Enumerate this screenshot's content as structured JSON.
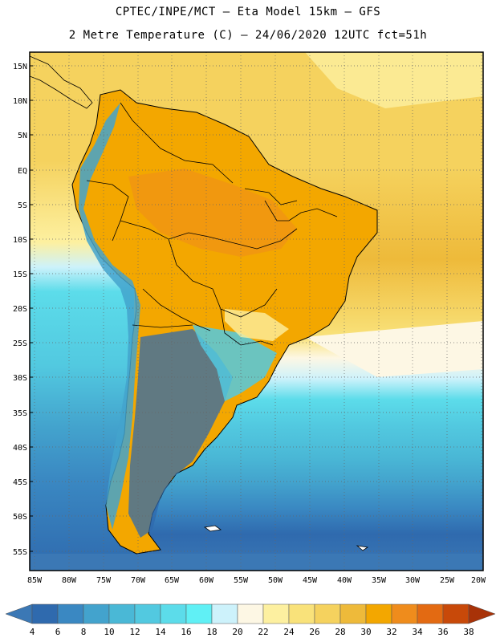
{
  "header": {
    "line1": "CPTEC/INPE/MCT –  Eta Model 15km – GFS",
    "line2": "2 Metre Temperature (C) – 24/06/2020 12UTC fct=51h"
  },
  "map": {
    "lat_labels": [
      "15N",
      "10N",
      "5N",
      "EQ",
      "5S",
      "10S",
      "15S",
      "20S",
      "25S",
      "30S",
      "35S",
      "40S",
      "45S",
      "50S",
      "55S"
    ],
    "lon_labels": [
      "85W",
      "80W",
      "75W",
      "70W",
      "65W",
      "60W",
      "55W",
      "50W",
      "45W",
      "40W",
      "35W",
      "30W",
      "25W",
      "20W"
    ]
  },
  "colorbar": {
    "labels": [
      "4",
      "6",
      "8",
      "10",
      "12",
      "14",
      "16",
      "18",
      "20",
      "22",
      "24",
      "26",
      "28",
      "30",
      "32",
      "34",
      "36",
      "38"
    ],
    "colors": [
      "#3b78b5",
      "#2f6aae",
      "#3a88c2",
      "#43a3cd",
      "#4ab8d6",
      "#52c9e0",
      "#5cdcea",
      "#60f0f5",
      "#cdf2fb",
      "#fdf7e4",
      "#fdf0a0",
      "#f9e27a",
      "#f5d25e",
      "#eeba3a",
      "#f3a700",
      "#ef8c1c",
      "#e36a12",
      "#c84909",
      "#a83208"
    ]
  }
}
